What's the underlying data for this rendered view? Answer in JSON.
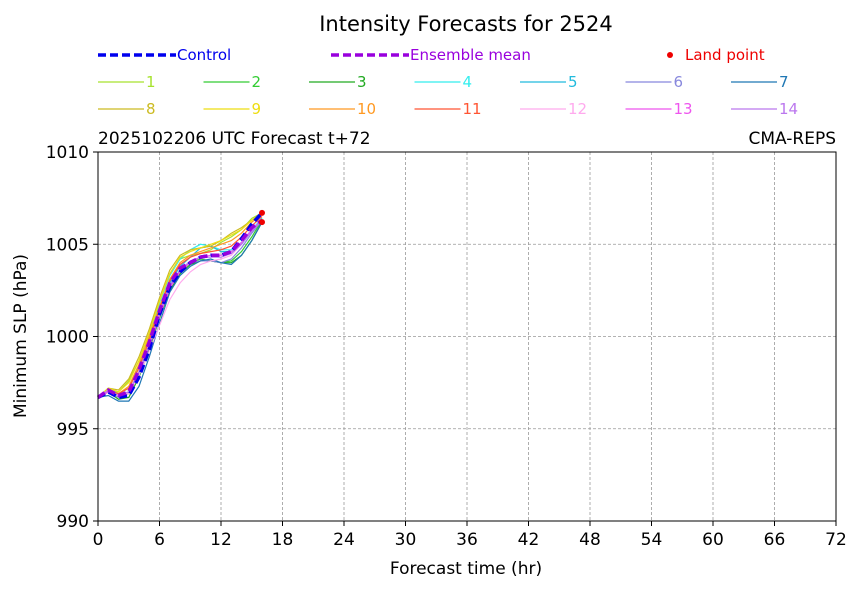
{
  "chart_data": {
    "type": "line",
    "title": "Intensity Forecasts for 2524",
    "subtitle_left": "2025102206 UTC Forecast t+72",
    "subtitle_right": "CMA-REPS",
    "xlabel": "Forecast time (hr)",
    "ylabel": "Minimum SLP (hPa)",
    "xlim": [
      0,
      72
    ],
    "ylim": [
      990,
      1010
    ],
    "xticks": [
      0,
      6,
      12,
      18,
      24,
      30,
      36,
      42,
      48,
      54,
      60,
      66,
      72
    ],
    "yticks": [
      990,
      995,
      1000,
      1005,
      1010
    ],
    "grid": true,
    "legend": [
      {
        "label": "Control",
        "color": "#0000ee",
        "style": "dashed"
      },
      {
        "label": "Ensemble mean",
        "color": "#9900dd",
        "style": "dashed"
      },
      {
        "label": "Land point",
        "color": "#ee0000",
        "style": "marker"
      },
      {
        "label": "1",
        "color": "#a6e22e",
        "style": "solid"
      },
      {
        "label": "2",
        "color": "#33cc33",
        "style": "solid"
      },
      {
        "label": "3",
        "color": "#22aa22",
        "style": "solid"
      },
      {
        "label": "4",
        "color": "#33eeee",
        "style": "solid"
      },
      {
        "label": "5",
        "color": "#22bbdd",
        "style": "solid"
      },
      {
        "label": "6",
        "color": "#8888dd",
        "style": "solid"
      },
      {
        "label": "7",
        "color": "#1f77b4",
        "style": "solid"
      },
      {
        "label": "8",
        "color": "#ccbb22",
        "style": "solid"
      },
      {
        "label": "9",
        "color": "#eedd11",
        "style": "solid"
      },
      {
        "label": "10",
        "color": "#ff9922",
        "style": "solid"
      },
      {
        "label": "11",
        "color": "#ff5533",
        "style": "solid"
      },
      {
        "label": "12",
        "color": "#ffaaee",
        "style": "solid"
      },
      {
        "label": "13",
        "color": "#ee55ee",
        "style": "solid"
      },
      {
        "label": "14",
        "color": "#bb77ee",
        "style": "solid"
      }
    ],
    "x": [
      0,
      1,
      2,
      3,
      4,
      5,
      6,
      7,
      8,
      9,
      10,
      11,
      12,
      13,
      14,
      15,
      16
    ],
    "series": [
      {
        "name": "Control",
        "values": [
          996.7,
          997.0,
          996.7,
          996.8,
          997.8,
          999.3,
          1001.2,
          1002.7,
          1003.5,
          1004.0,
          1004.3,
          1004.4,
          1004.4,
          1004.6,
          1005.3,
          1006.1,
          1006.7
        ]
      },
      {
        "name": "Ensemble mean",
        "values": [
          996.7,
          997.1,
          996.8,
          997.0,
          998.2,
          999.7,
          1001.4,
          1002.9,
          1003.7,
          1004.0,
          1004.3,
          1004.4,
          1004.4,
          1004.6,
          1005.2,
          1005.9,
          1006.3
        ]
      },
      {
        "name": "1",
        "values": [
          996.7,
          997.1,
          997.0,
          997.6,
          998.7,
          1000.2,
          1001.9,
          1003.4,
          1004.2,
          1004.4,
          1004.5,
          1004.7,
          1005.1,
          1005.4,
          1005.8,
          1006.4,
          1006.7
        ]
      },
      {
        "name": "2",
        "values": [
          996.7,
          997.1,
          996.8,
          996.9,
          998.0,
          999.4,
          1001.0,
          1002.6,
          1003.5,
          1004.0,
          1004.2,
          1004.1,
          1004.0,
          1004.1,
          1004.6,
          1005.4,
          1006.3
        ]
      },
      {
        "name": "3",
        "values": [
          996.7,
          997.0,
          996.6,
          996.7,
          997.8,
          999.3,
          1001.0,
          1002.5,
          1003.4,
          1003.9,
          1004.1,
          1004.1,
          1004.0,
          1004.0,
          1004.4,
          1005.2,
          1006.2
        ]
      },
      {
        "name": "4",
        "values": [
          996.7,
          997.2,
          996.9,
          997.2,
          998.4,
          1000.0,
          1001.8,
          1003.3,
          1004.2,
          1004.7,
          1005.0,
          1004.9,
          1004.7,
          1004.7,
          1005.1,
          1005.8,
          1006.4
        ]
      },
      {
        "name": "5",
        "values": [
          996.7,
          997.1,
          996.8,
          997.0,
          998.1,
          999.6,
          1001.3,
          1002.9,
          1003.8,
          1004.3,
          1004.8,
          1004.9,
          1004.6,
          1004.6,
          1005.0,
          1005.7,
          1006.4
        ]
      },
      {
        "name": "6",
        "values": [
          996.7,
          997.0,
          996.7,
          996.9,
          998.0,
          999.4,
          1001.1,
          1002.7,
          1003.6,
          1004.0,
          1004.1,
          1004.1,
          1004.0,
          1004.2,
          1004.8,
          1005.6,
          1006.3
        ]
      },
      {
        "name": "7",
        "values": [
          996.7,
          996.8,
          996.5,
          996.5,
          997.3,
          998.9,
          1000.7,
          1002.4,
          1003.3,
          1003.8,
          1004.1,
          1004.2,
          1004.0,
          1003.9,
          1004.4,
          1005.2,
          1006.2
        ]
      },
      {
        "name": "8",
        "values": [
          996.7,
          997.2,
          997.1,
          997.7,
          998.9,
          1000.4,
          1002.1,
          1003.6,
          1004.4,
          1004.7,
          1004.8,
          1004.9,
          1005.2,
          1005.6,
          1005.9,
          1006.3,
          1006.7
        ]
      },
      {
        "name": "9",
        "values": [
          996.7,
          997.2,
          997.0,
          997.5,
          998.7,
          1000.2,
          1001.9,
          1003.4,
          1004.3,
          1004.6,
          1004.8,
          1005.0,
          1005.2,
          1005.5,
          1005.8,
          1006.3,
          1006.7
        ]
      },
      {
        "name": "10",
        "values": [
          996.7,
          997.1,
          996.9,
          997.3,
          998.5,
          1000.0,
          1001.6,
          1003.1,
          1004.0,
          1004.4,
          1004.6,
          1004.8,
          1005.0,
          1005.2,
          1005.6,
          1006.2,
          1006.6
        ]
      },
      {
        "name": "11",
        "values": [
          996.7,
          997.1,
          996.9,
          997.2,
          998.3,
          999.8,
          1001.5,
          1003.0,
          1003.9,
          1004.3,
          1004.5,
          1004.6,
          1004.7,
          1004.9,
          1005.4,
          1006.0,
          1006.5
        ]
      },
      {
        "name": "12",
        "values": [
          996.7,
          997.1,
          996.8,
          996.9,
          997.9,
          999.2,
          1000.6,
          1002.0,
          1002.9,
          1003.5,
          1003.9,
          1004.1,
          1004.2,
          1004.4,
          1005.0,
          1005.8,
          1006.3
        ]
      },
      {
        "name": "13",
        "values": [
          996.7,
          997.0,
          996.8,
          997.0,
          998.1,
          999.5,
          1001.1,
          1002.6,
          1003.5,
          1004.0,
          1004.3,
          1004.4,
          1004.4,
          1004.6,
          1005.1,
          1005.8,
          1006.3
        ]
      },
      {
        "name": "14",
        "values": [
          996.7,
          997.1,
          996.8,
          997.0,
          998.1,
          999.6,
          1001.3,
          1002.8,
          1003.6,
          1004.1,
          1004.3,
          1004.3,
          1004.3,
          1004.5,
          1005.0,
          1005.7,
          1006.3
        ]
      }
    ],
    "land_points": [
      {
        "x": 16,
        "y": 1006.7
      },
      {
        "x": 16,
        "y": 1006.2
      }
    ]
  }
}
